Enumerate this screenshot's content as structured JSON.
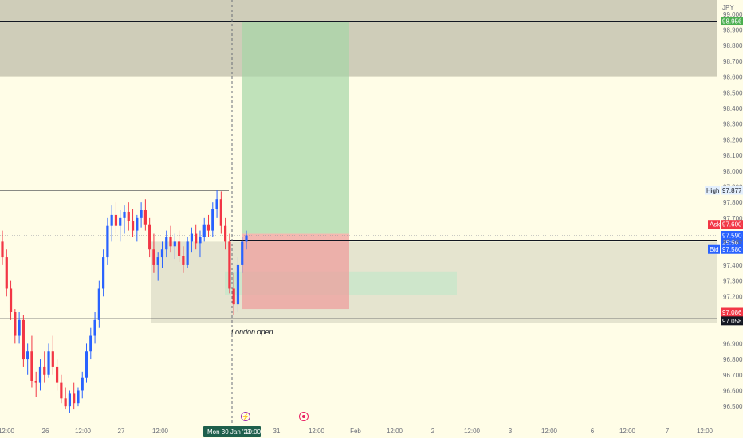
{
  "symbol": {
    "currency": "JPY"
  },
  "colors": {
    "background": "#fffde7",
    "bull": "#2962ff",
    "bear": "#f23645",
    "target_zone": "#a5d6a7",
    "stop_zone": "#ef9a9a",
    "supply_zone": "#cfcdb9",
    "demand_zone": "#e5e4cf",
    "imbalance_zone": "#c8e6c9"
  },
  "price_axis": {
    "ticks": [
      "99.000",
      "98.900",
      "98.800",
      "98.700",
      "98.600",
      "98.500",
      "98.400",
      "98.300",
      "98.200",
      "98.100",
      "98.000",
      "97.900",
      "97.800",
      "97.700",
      "97.400",
      "97.300",
      "97.200",
      "96.900",
      "96.800",
      "96.700",
      "96.600",
      "96.500"
    ],
    "min": 96.45,
    "max": 99.05
  },
  "price_tags": {
    "top_level": "98.956",
    "high_label": "High",
    "high_value": "97.877",
    "ask_label": "Ask",
    "ask_value": "97.600",
    "last_value": "97.590",
    "countdown": "25:56",
    "mid_value": "97.582",
    "bid_label": "Bid",
    "bid_value": "97.580",
    "low_red": "97.086",
    "low_black": "97.058"
  },
  "time_axis": {
    "labels": [
      "12:00",
      "26",
      "12:00",
      "27",
      "12:00",
      "31",
      "12:00",
      "Feb",
      "12:00",
      "2",
      "12:00",
      "3",
      "12:00",
      "6",
      "12:00",
      "7",
      "12:00"
    ],
    "crosshair_label": "Mon 30 Jan '23",
    "crosshair_time": "10:00"
  },
  "annotations": {
    "session_label": "London open"
  },
  "chart_data": {
    "type": "candlestick",
    "timeframe": "1h",
    "ohlc": [
      [
        97.55,
        97.62,
        97.4,
        97.45
      ],
      [
        97.45,
        97.5,
        97.2,
        97.25
      ],
      [
        97.25,
        97.3,
        97.05,
        97.1
      ],
      [
        97.1,
        97.12,
        96.9,
        96.95
      ],
      [
        96.95,
        97.1,
        96.9,
        97.05
      ],
      [
        97.05,
        97.08,
        96.75,
        96.8
      ],
      [
        96.8,
        96.9,
        96.7,
        96.85
      ],
      [
        96.85,
        96.95,
        96.62,
        96.66
      ],
      [
        96.66,
        96.72,
        96.56,
        96.65
      ],
      [
        96.65,
        96.8,
        96.6,
        96.75
      ],
      [
        96.75,
        96.85,
        96.65,
        96.7
      ],
      [
        96.7,
        96.9,
        96.68,
        96.85
      ],
      [
        96.85,
        96.95,
        96.7,
        96.75
      ],
      [
        96.75,
        96.8,
        96.6,
        96.65
      ],
      [
        96.65,
        96.7,
        96.52,
        96.55
      ],
      [
        96.55,
        96.62,
        96.48,
        96.5
      ],
      [
        96.5,
        96.6,
        96.46,
        96.58
      ],
      [
        96.58,
        96.65,
        96.48,
        96.52
      ],
      [
        96.52,
        96.62,
        96.5,
        96.6
      ],
      [
        96.6,
        96.72,
        96.55,
        96.68
      ],
      [
        96.68,
        96.9,
        96.65,
        96.85
      ],
      [
        96.85,
        97.0,
        96.8,
        96.95
      ],
      [
        96.95,
        97.1,
        96.9,
        97.05
      ],
      [
        97.05,
        97.3,
        97.0,
        97.25
      ],
      [
        97.25,
        97.5,
        97.2,
        97.45
      ],
      [
        97.45,
        97.7,
        97.4,
        97.65
      ],
      [
        97.65,
        97.78,
        97.55,
        97.72
      ],
      [
        97.72,
        97.8,
        97.6,
        97.65
      ],
      [
        97.65,
        97.75,
        97.55,
        97.7
      ],
      [
        97.7,
        97.78,
        97.6,
        97.74
      ],
      [
        97.74,
        97.8,
        97.62,
        97.68
      ],
      [
        97.68,
        97.76,
        97.58,
        97.62
      ],
      [
        97.62,
        97.72,
        97.55,
        97.7
      ],
      [
        97.7,
        97.8,
        97.64,
        97.75
      ],
      [
        97.75,
        97.82,
        97.62,
        97.66
      ],
      [
        97.66,
        97.7,
        97.45,
        97.5
      ],
      [
        97.5,
        97.6,
        97.35,
        97.4
      ],
      [
        97.4,
        97.48,
        97.3,
        97.45
      ],
      [
        97.45,
        97.55,
        97.38,
        97.5
      ],
      [
        97.5,
        97.62,
        97.45,
        97.58
      ],
      [
        97.58,
        97.65,
        97.48,
        97.52
      ],
      [
        97.52,
        97.6,
        97.44,
        97.55
      ],
      [
        97.55,
        97.62,
        97.42,
        97.46
      ],
      [
        97.46,
        97.52,
        97.35,
        97.4
      ],
      [
        97.4,
        97.58,
        97.38,
        97.55
      ],
      [
        97.55,
        97.64,
        97.48,
        97.6
      ],
      [
        97.6,
        97.66,
        97.5,
        97.54
      ],
      [
        97.54,
        97.62,
        97.45,
        97.58
      ],
      [
        97.58,
        97.7,
        97.55,
        97.66
      ],
      [
        97.66,
        97.72,
        97.58,
        97.62
      ],
      [
        97.62,
        97.8,
        97.58,
        97.76
      ],
      [
        97.76,
        97.88,
        97.7,
        97.82
      ],
      [
        97.82,
        97.87,
        97.6,
        97.65
      ],
      [
        97.65,
        97.7,
        97.5,
        97.55
      ],
      [
        97.55,
        97.6,
        97.22,
        97.25
      ],
      [
        97.25,
        97.35,
        97.08,
        97.15
      ],
      [
        97.15,
        97.45,
        97.1,
        97.4
      ],
      [
        97.4,
        97.58,
        97.35,
        97.55
      ],
      [
        97.55,
        97.62,
        97.5,
        97.59
      ]
    ]
  },
  "drawings": {
    "long_position": {
      "entry": 97.6,
      "target": 98.956,
      "stop": 97.12
    },
    "resistance_line": 97.877,
    "support_line": 97.058,
    "bid_line": 97.58,
    "supply_zone": [
      98.6,
      99.05
    ],
    "demand_zone": [
      97.03,
      97.55
    ],
    "imbalance_zone": [
      97.21,
      97.36
    ]
  }
}
